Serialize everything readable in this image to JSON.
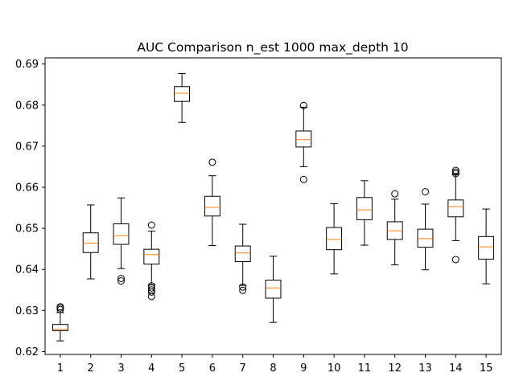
{
  "chart_data": {
    "type": "boxplot",
    "title": "AUC Comparison n_est 1000 max_depth 10",
    "xlabel": "",
    "ylabel": "",
    "ylim": [
      0.6193,
      0.6915
    ],
    "yticks": [
      "0.62",
      "0.63",
      "0.64",
      "0.65",
      "0.66",
      "0.67",
      "0.68",
      "0.69"
    ],
    "categories": [
      "1",
      "2",
      "3",
      "4",
      "5",
      "6",
      "7",
      "8",
      "9",
      "10",
      "11",
      "12",
      "13",
      "14",
      "15"
    ],
    "grid": false,
    "colors": {
      "box": "#000000",
      "median": "#ff7f0e",
      "background": "#ffffff"
    },
    "boxes": [
      {
        "whisker_low": 0.6226,
        "q1": 0.6251,
        "median": 0.6254,
        "q3": 0.6266,
        "whisker_high": 0.6295,
        "fliers": [
          0.6302,
          0.6306,
          0.6309
        ]
      },
      {
        "whisker_low": 0.6377,
        "q1": 0.6441,
        "median": 0.6464,
        "q3": 0.6489,
        "whisker_high": 0.6557,
        "fliers": []
      },
      {
        "whisker_low": 0.6402,
        "q1": 0.6461,
        "median": 0.6482,
        "q3": 0.6511,
        "whisker_high": 0.6574,
        "fliers": [
          0.6372,
          0.6378
        ]
      },
      {
        "whisker_low": 0.6363,
        "q1": 0.6413,
        "median": 0.6436,
        "q3": 0.6449,
        "whisker_high": 0.6493,
        "fliers": [
          0.6508,
          0.636,
          0.6355,
          0.635,
          0.6345,
          0.6334
        ]
      },
      {
        "whisker_low": 0.6758,
        "q1": 0.6809,
        "median": 0.6829,
        "q3": 0.6845,
        "whisker_high": 0.6877,
        "fliers": []
      },
      {
        "whisker_low": 0.6458,
        "q1": 0.653,
        "median": 0.6551,
        "q3": 0.6578,
        "whisker_high": 0.6628,
        "fliers": [
          0.6661
        ]
      },
      {
        "whisker_low": 0.6361,
        "q1": 0.6419,
        "median": 0.644,
        "q3": 0.6457,
        "whisker_high": 0.651,
        "fliers": [
          0.6357,
          0.6349
        ]
      },
      {
        "whisker_low": 0.6271,
        "q1": 0.633,
        "median": 0.6355,
        "q3": 0.6374,
        "whisker_high": 0.6432,
        "fliers": []
      },
      {
        "whisker_low": 0.665,
        "q1": 0.6698,
        "median": 0.6716,
        "q3": 0.6737,
        "whisker_high": 0.6795,
        "fliers": [
          0.6799,
          0.6619
        ]
      },
      {
        "whisker_low": 0.6389,
        "q1": 0.6448,
        "median": 0.6473,
        "q3": 0.6502,
        "whisker_high": 0.656,
        "fliers": []
      },
      {
        "whisker_low": 0.6459,
        "q1": 0.6521,
        "median": 0.6545,
        "q3": 0.6575,
        "whisker_high": 0.6616,
        "fliers": []
      },
      {
        "whisker_low": 0.6411,
        "q1": 0.6473,
        "median": 0.6494,
        "q3": 0.6516,
        "whisker_high": 0.6571,
        "fliers": [
          0.6584
        ]
      },
      {
        "whisker_low": 0.6399,
        "q1": 0.6454,
        "median": 0.6475,
        "q3": 0.6498,
        "whisker_high": 0.6559,
        "fliers": [
          0.6589
        ]
      },
      {
        "whisker_low": 0.647,
        "q1": 0.6528,
        "median": 0.6553,
        "q3": 0.6569,
        "whisker_high": 0.6632,
        "fliers": [
          0.6641,
          0.6637,
          0.6633,
          0.6424
        ]
      },
      {
        "whisker_low": 0.6365,
        "q1": 0.6425,
        "median": 0.6455,
        "q3": 0.648,
        "whisker_high": 0.6547,
        "fliers": []
      }
    ]
  }
}
